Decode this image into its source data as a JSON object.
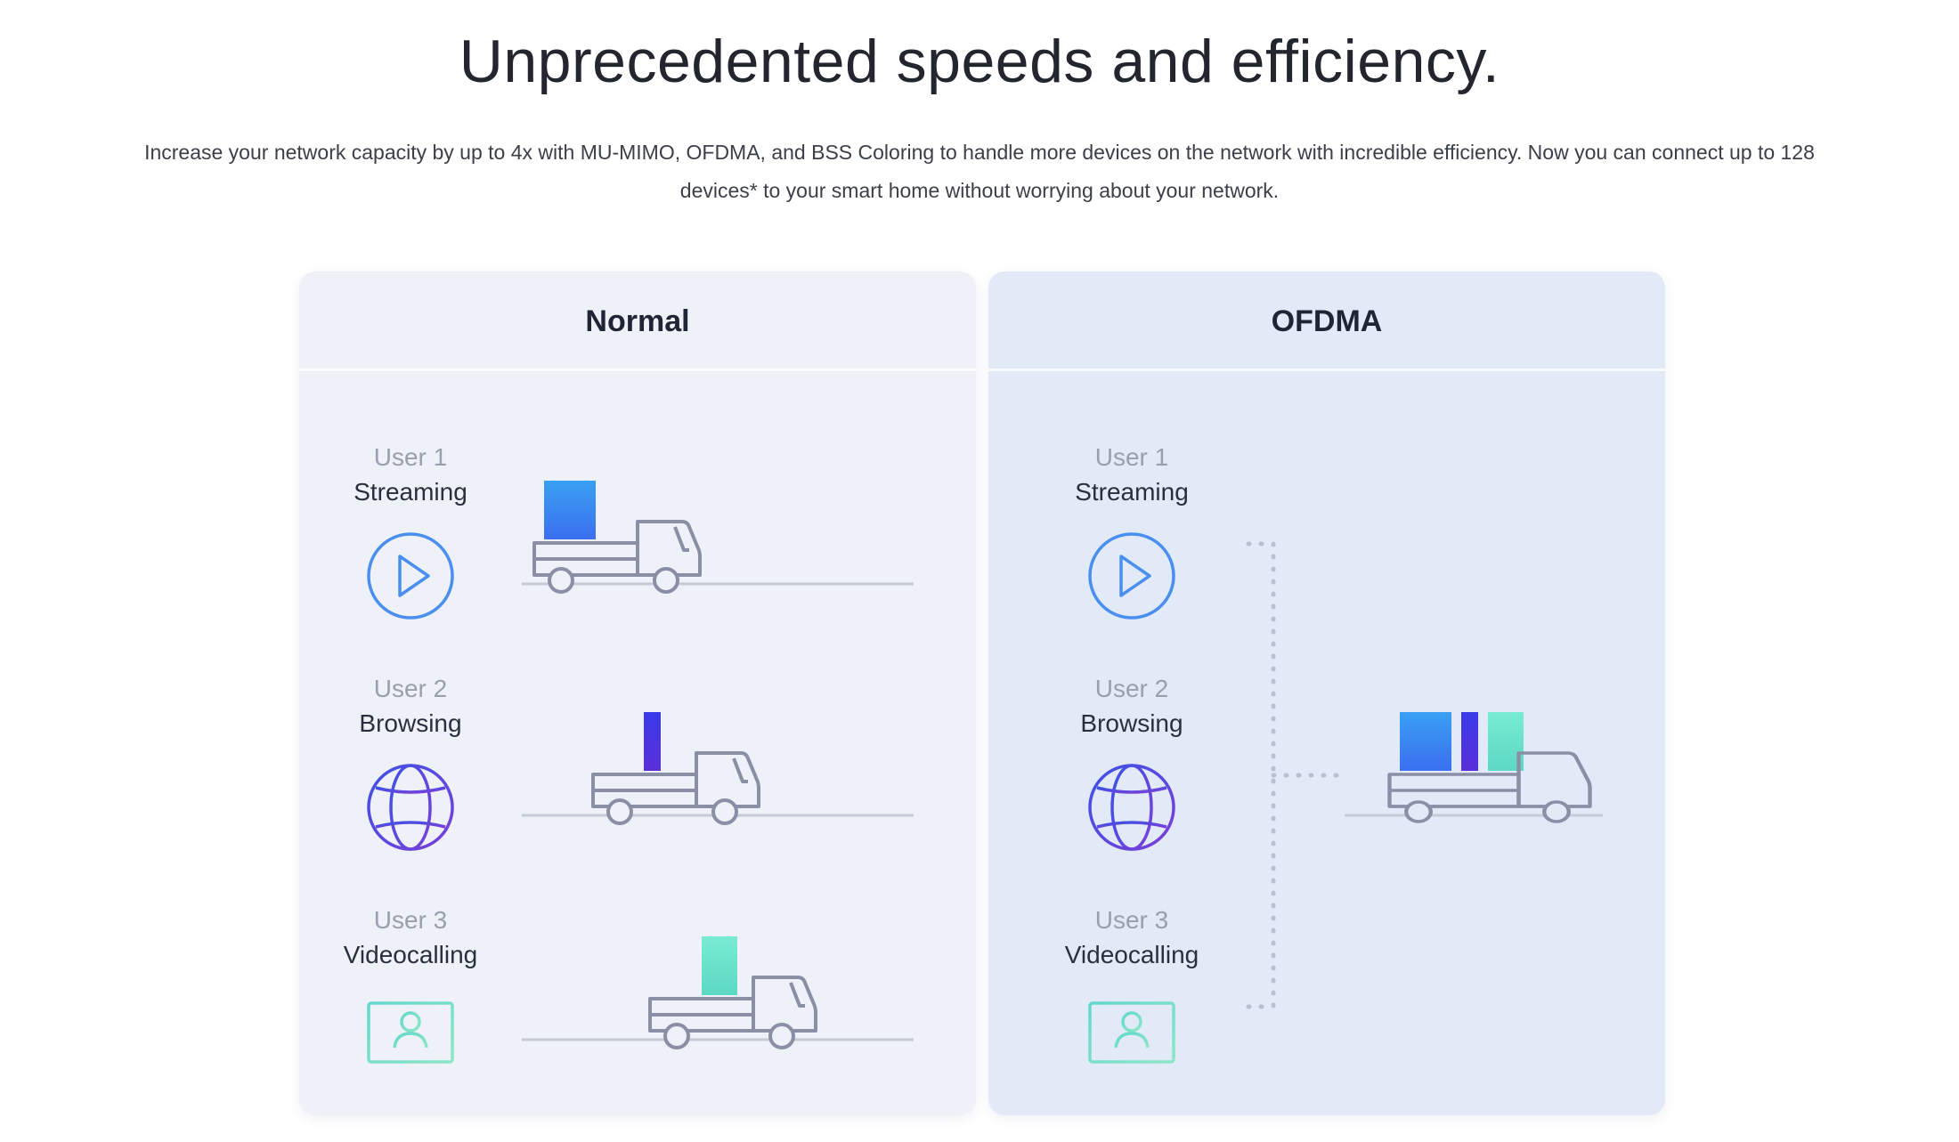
{
  "hero": {
    "title": "Unprecedented speeds and efficiency.",
    "description": "Increase your network capacity by up to 4x with MU-MIMO, OFDMA, and BSS Coloring to handle more devices on the network with incredible efficiency. Now you can connect up to 128 devices* to your smart home without worrying about your network."
  },
  "panels": {
    "normal": {
      "title": "Normal",
      "users": [
        {
          "number": "User 1",
          "activity": "Streaming",
          "icon": "play-icon"
        },
        {
          "number": "User 2",
          "activity": "Browsing",
          "icon": "globe-icon"
        },
        {
          "number": "User 3",
          "activity": "Videocalling",
          "icon": "monitor-user-icon"
        }
      ]
    },
    "ofdma": {
      "title": "OFDMA",
      "users": [
        {
          "number": "User 1",
          "activity": "Streaming",
          "icon": "play-icon"
        },
        {
          "number": "User 2",
          "activity": "Browsing",
          "icon": "globe-icon"
        },
        {
          "number": "User 3",
          "activity": "Videocalling",
          "icon": "monitor-user-icon"
        }
      ]
    }
  },
  "colors": {
    "streaming_cargo": "#3b8ff0",
    "browsing_cargo": "#4a34e0",
    "videocall_cargo": "#6ee6cc",
    "truck_stroke": "#8a8fa6",
    "road": "#c5cad6"
  }
}
